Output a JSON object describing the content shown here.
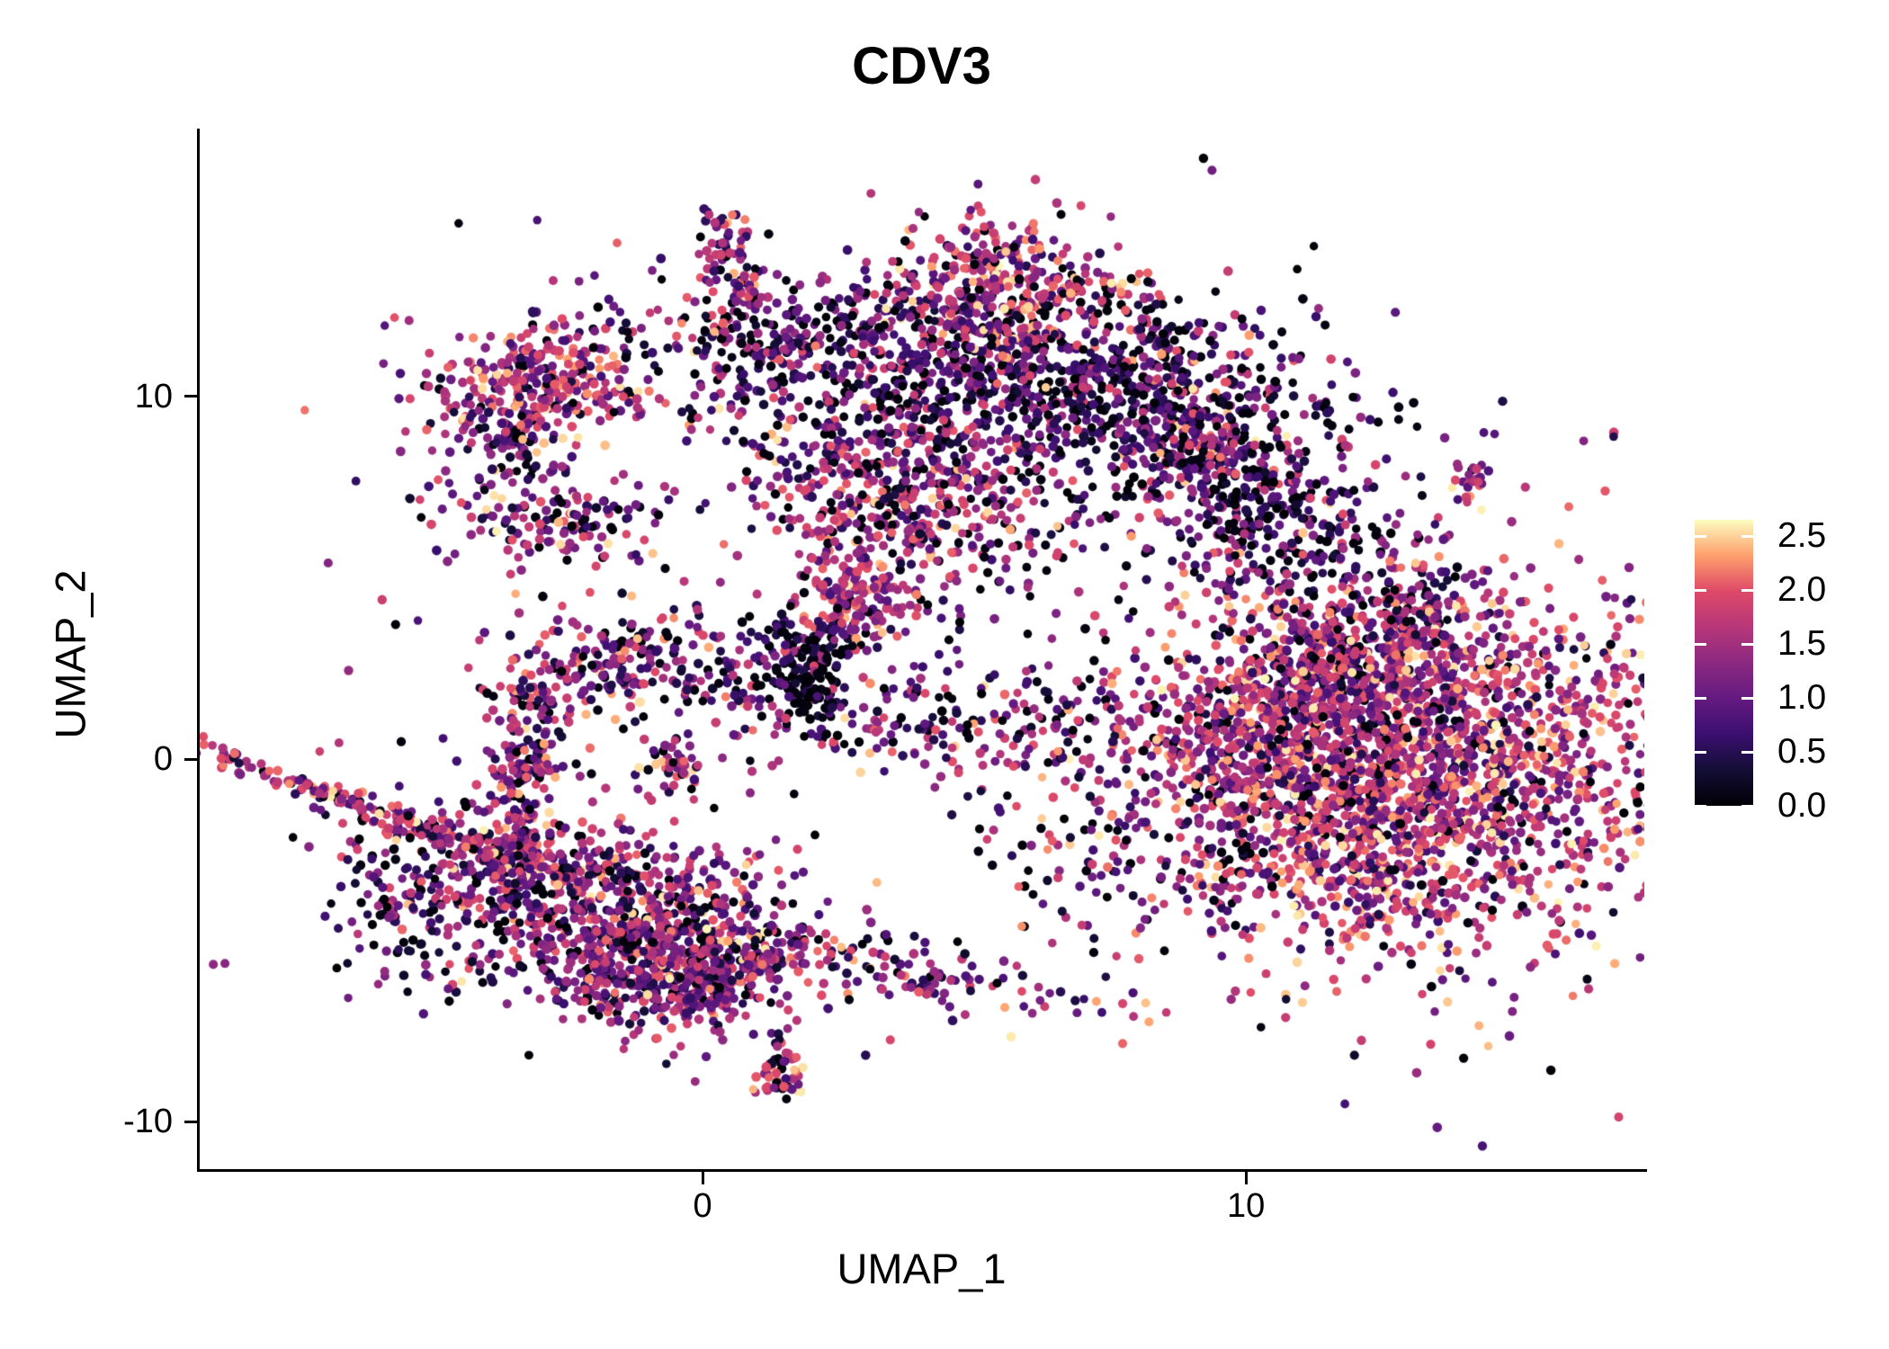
{
  "title": "CDV3",
  "axes": {
    "x": {
      "label": "UMAP_1",
      "range": [
        -9.27,
        17.33
      ],
      "ticks": [
        {
          "value": 0,
          "label": "0"
        },
        {
          "value": 10,
          "label": "10"
        }
      ]
    },
    "y": {
      "label": "UMAP_2",
      "range": [
        -11.36,
        17.39
      ],
      "ticks": [
        {
          "value": 10,
          "label": "10"
        },
        {
          "value": 0,
          "label": "0"
        },
        {
          "value": -10,
          "label": "-10"
        }
      ]
    }
  },
  "legend": {
    "vmin": 0.0,
    "vmax": 2.65,
    "ticks": [
      {
        "value": 2.5,
        "label": "2.5"
      },
      {
        "value": 2.0,
        "label": "2.0"
      },
      {
        "value": 1.5,
        "label": "1.5"
      },
      {
        "value": 1.0,
        "label": "1.0"
      },
      {
        "value": 0.5,
        "label": "0.5"
      },
      {
        "value": 0.0,
        "label": "0.0"
      }
    ],
    "colormap_name": "magma",
    "colormap_stops": [
      "#000004",
      "#140e36",
      "#3b0f70",
      "#641a80",
      "#8c2981",
      "#b73779",
      "#de4968",
      "#fe9f6d",
      "#fcfdbf"
    ]
  },
  "colors": {
    "background": "#ffffff",
    "axis": "#000000",
    "text": "#000000"
  },
  "chart_data": {
    "type": "scatter",
    "title": "CDV3",
    "xlabel": "UMAP_1",
    "ylabel": "UMAP_2",
    "x_range": [
      -9.27,
      17.33
    ],
    "y_range": [
      -11.36,
      17.39
    ],
    "grid": false,
    "legend_position": "right",
    "color_scale": {
      "name": "magma",
      "domain": [
        0.0,
        2.65
      ],
      "feature": "CDV3 expression"
    },
    "point_radius_px": 5,
    "n_points_total": 9721,
    "expression_bins": [
      [
        0.0,
        0.12
      ],
      [
        0.25,
        0.85
      ],
      [
        0.85,
        1.5
      ],
      [
        1.5,
        2.1
      ],
      [
        2.1,
        2.62
      ]
    ],
    "expression_profiles": {
      "warm": [
        0.07,
        0.1,
        0.26,
        0.4,
        0.17
      ],
      "orange": [
        0.04,
        0.07,
        0.18,
        0.43,
        0.28
      ],
      "mixed": [
        0.15,
        0.2,
        0.3,
        0.28,
        0.07
      ],
      "dark": [
        0.3,
        0.36,
        0.23,
        0.1,
        0.01
      ],
      "black": [
        0.8,
        0.13,
        0.05,
        0.02,
        0.0
      ],
      "pink": [
        0.06,
        0.1,
        0.36,
        0.4,
        0.08
      ]
    },
    "clusters": [
      {
        "name": "top-small-blob-a",
        "x": 0.4,
        "y": 14.19,
        "sx": 0.23,
        "sy": 0.5,
        "rot": 0,
        "n": 55,
        "profile": "mixed"
      },
      {
        "name": "top-small-blob-b",
        "x": 0.73,
        "y": 12.75,
        "sx": 0.2,
        "sy": 0.4,
        "rot": 0,
        "n": 40,
        "profile": "mixed"
      },
      {
        "name": "top-small-strays",
        "x": 0.23,
        "y": 11.86,
        "sx": 0.12,
        "sy": 0.17,
        "rot": 0,
        "n": 7,
        "profile": "warm"
      },
      {
        "name": "top-triangle",
        "x": 5.28,
        "y": 12.88,
        "sx": 0.86,
        "sy": 1.04,
        "rot": 0,
        "n": 310,
        "profile": "warm"
      },
      {
        "name": "triangle-tail",
        "x": 7.07,
        "y": 13.05,
        "sx": 0.63,
        "sy": 0.2,
        "rot": 10,
        "n": 40,
        "profile": "orange"
      },
      {
        "name": "right-chain",
        "x": 8.59,
        "y": 10.52,
        "sx": 0.26,
        "sy": 1.61,
        "rot": -22,
        "n": 50,
        "profile": "mixed"
      },
      {
        "name": "chain-blob",
        "x": 9.01,
        "y": 8.86,
        "sx": 0.41,
        "sy": 0.45,
        "rot": 0,
        "n": 40,
        "profile": "warm"
      },
      {
        "name": "chain-pair",
        "x": 9.7,
        "y": 8.81,
        "sx": 0.15,
        "sy": 0.22,
        "rot": 0,
        "n": 10,
        "profile": "mixed"
      },
      {
        "name": "isolated-right-blob",
        "x": 14.11,
        "y": 7.72,
        "sx": 0.2,
        "sy": 0.25,
        "rot": 0,
        "n": 25,
        "profile": "pink"
      },
      {
        "name": "left-wing",
        "x": -3.0,
        "y": 10.27,
        "sx": 1.16,
        "sy": 0.92,
        "rot": -8,
        "n": 330,
        "profile": "warm"
      },
      {
        "name": "left-wing-fringe",
        "x": -3.66,
        "y": 9.08,
        "sx": 0.36,
        "sy": 0.55,
        "rot": 0,
        "n": 45,
        "profile": "dark"
      },
      {
        "name": "left-wing-stray",
        "x": -3.86,
        "y": 7.84,
        "sx": 0.08,
        "sy": 0.12,
        "rot": 0,
        "n": 3,
        "profile": "orange"
      },
      {
        "name": "left-strip",
        "x": -2.91,
        "y": 6.75,
        "sx": 0.96,
        "sy": 0.67,
        "rot": 8,
        "n": 150,
        "profile": "mixed"
      },
      {
        "name": "wing-strip-connector",
        "x": -3.33,
        "y": 8.16,
        "sx": 0.15,
        "sy": 0.5,
        "rot": 0,
        "n": 12,
        "profile": "dark"
      },
      {
        "name": "band-left-tip",
        "x": 1.64,
        "y": 11.56,
        "sx": 0.91,
        "sy": 0.4,
        "rot": -12,
        "n": 90,
        "profile": "dark"
      },
      {
        "name": "central-band",
        "x": 5.7,
        "y": 10.4,
        "sx": 3.06,
        "sy": 1.36,
        "rot": 6,
        "n": 1250,
        "profile": "dark"
      },
      {
        "name": "central-band-right-arm",
        "x": 10.08,
        "y": 7.3,
        "sx": 1.32,
        "sy": 1.12,
        "rot": 42,
        "n": 400,
        "profile": "dark"
      },
      {
        "name": "central-lower-lobe",
        "x": 3.63,
        "y": 7.17,
        "sx": 1.49,
        "sy": 1.19,
        "rot": 10,
        "n": 480,
        "profile": "mixed"
      },
      {
        "name": "warm-beak",
        "x": 2.88,
        "y": 4.44,
        "sx": 0.55,
        "sy": 0.67,
        "rot": 0,
        "n": 150,
        "profile": "pink"
      },
      {
        "name": "black-clump",
        "x": 1.97,
        "y": 2.16,
        "sx": 0.28,
        "sy": 0.67,
        "rot": 0,
        "n": 110,
        "profile": "black"
      },
      {
        "name": "black-clump-halo",
        "x": 2.0,
        "y": 3.28,
        "sx": 0.63,
        "sy": 0.6,
        "rot": 0,
        "n": 60,
        "profile": "dark"
      },
      {
        "name": "middle-sparse-band",
        "x": 5.86,
        "y": 0.97,
        "sx": 4.22,
        "sy": 0.82,
        "rot": 4,
        "n": 330,
        "profile": "mixed"
      },
      {
        "name": "right-mass-core",
        "x": 12.81,
        "y": -0.27,
        "sx": 2.45,
        "sy": 2.56,
        "rot": 0,
        "n": 2600,
        "profile": "warm"
      },
      {
        "name": "right-mass-fringe",
        "x": 11.08,
        "y": 1.59,
        "sx": 1.46,
        "sy": 1.44,
        "rot": -30,
        "n": 350,
        "profile": "mixed"
      },
      {
        "name": "right-knob",
        "x": 13.23,
        "y": 4.27,
        "sx": 0.45,
        "sy": 0.62,
        "rot": 0,
        "n": 90,
        "profile": "mixed"
      },
      {
        "name": "right-neck",
        "x": 11.41,
        "y": 3.03,
        "sx": 0.83,
        "sy": 0.74,
        "rot": 30,
        "n": 150,
        "profile": "mixed"
      },
      {
        "name": "lower-sparse-field",
        "x": 8.1,
        "y": -2.63,
        "sx": 1.66,
        "sy": 1.49,
        "rot": 0,
        "n": 100,
        "profile": "dark"
      },
      {
        "name": "right-mass-tail",
        "x": 12.32,
        "y": -3.25,
        "sx": 0.58,
        "sy": 0.37,
        "rot": 20,
        "n": 50,
        "profile": "warm"
      },
      {
        "name": "left-tail-streak",
        "x": -5.81,
        "y": -1.51,
        "sx": 2.07,
        "sy": 0.17,
        "rot": 19,
        "n": 210,
        "profile": "warm"
      },
      {
        "name": "left-tail-branch",
        "x": -5.48,
        "y": -4.37,
        "sx": 0.66,
        "sy": 1.36,
        "rot": -15,
        "n": 100,
        "profile": "dark"
      },
      {
        "name": "hook-arm",
        "x": -1.75,
        "y": 2.7,
        "sx": 0.86,
        "sy": 0.55,
        "rot": -18,
        "n": 150,
        "profile": "mixed"
      },
      {
        "name": "hook-strand",
        "x": -3.25,
        "y": -0.4,
        "sx": 0.36,
        "sy": 1.79,
        "rot": 7,
        "n": 200,
        "profile": "mixed"
      },
      {
        "name": "hook-side-pair",
        "x": -0.6,
        "y": -0.32,
        "sx": 0.31,
        "sy": 0.42,
        "rot": 0,
        "n": 40,
        "profile": "warm"
      },
      {
        "name": "bottom-upper-band",
        "x": -2.33,
        "y": -3.0,
        "sx": 1.95,
        "sy": 0.74,
        "rot": 8,
        "n": 380,
        "profile": "mixed"
      },
      {
        "name": "bottom-mass",
        "x": -1.34,
        "y": -5.11,
        "sx": 1.57,
        "sy": 0.99,
        "rot": 8,
        "n": 620,
        "profile": "mixed"
      },
      {
        "name": "bottom-mass-right",
        "x": -0.02,
        "y": -5.98,
        "sx": 0.91,
        "sy": 0.74,
        "rot": -12,
        "n": 280,
        "profile": "mixed"
      },
      {
        "name": "bottom-tip",
        "x": 0.07,
        "y": -6.65,
        "sx": 0.26,
        "sy": 0.3,
        "rot": 0,
        "n": 30,
        "profile": "mixed"
      },
      {
        "name": "bottom-stem",
        "x": 1.34,
        "y": -8.04,
        "sx": 0.1,
        "sy": 0.4,
        "rot": 0,
        "n": 14,
        "profile": "dark"
      },
      {
        "name": "bottom-stem-blob",
        "x": 1.42,
        "y": -8.83,
        "sx": 0.25,
        "sy": 0.32,
        "rot": 0,
        "n": 40,
        "profile": "warm"
      },
      {
        "name": "bottom-right-arm",
        "x": 3.79,
        "y": -5.86,
        "sx": 1.82,
        "sy": 0.45,
        "rot": 10,
        "n": 120,
        "profile": "mixed"
      },
      {
        "name": "clump-connector",
        "x": 0.48,
        "y": 2.46,
        "sx": 0.91,
        "sy": 0.74,
        "rot": 0,
        "n": 70,
        "profile": "dark"
      },
      {
        "name": "noise-left",
        "x": -3.0,
        "y": 1.09,
        "sx": 2.48,
        "sy": 3.72,
        "rot": 0,
        "n": 60,
        "profile": "mixed"
      },
      {
        "name": "noise-middle",
        "x": 6.11,
        "y": 4.81,
        "sx": 3.31,
        "sy": 2.98,
        "rot": 0,
        "n": 80,
        "profile": "dark"
      }
    ]
  }
}
